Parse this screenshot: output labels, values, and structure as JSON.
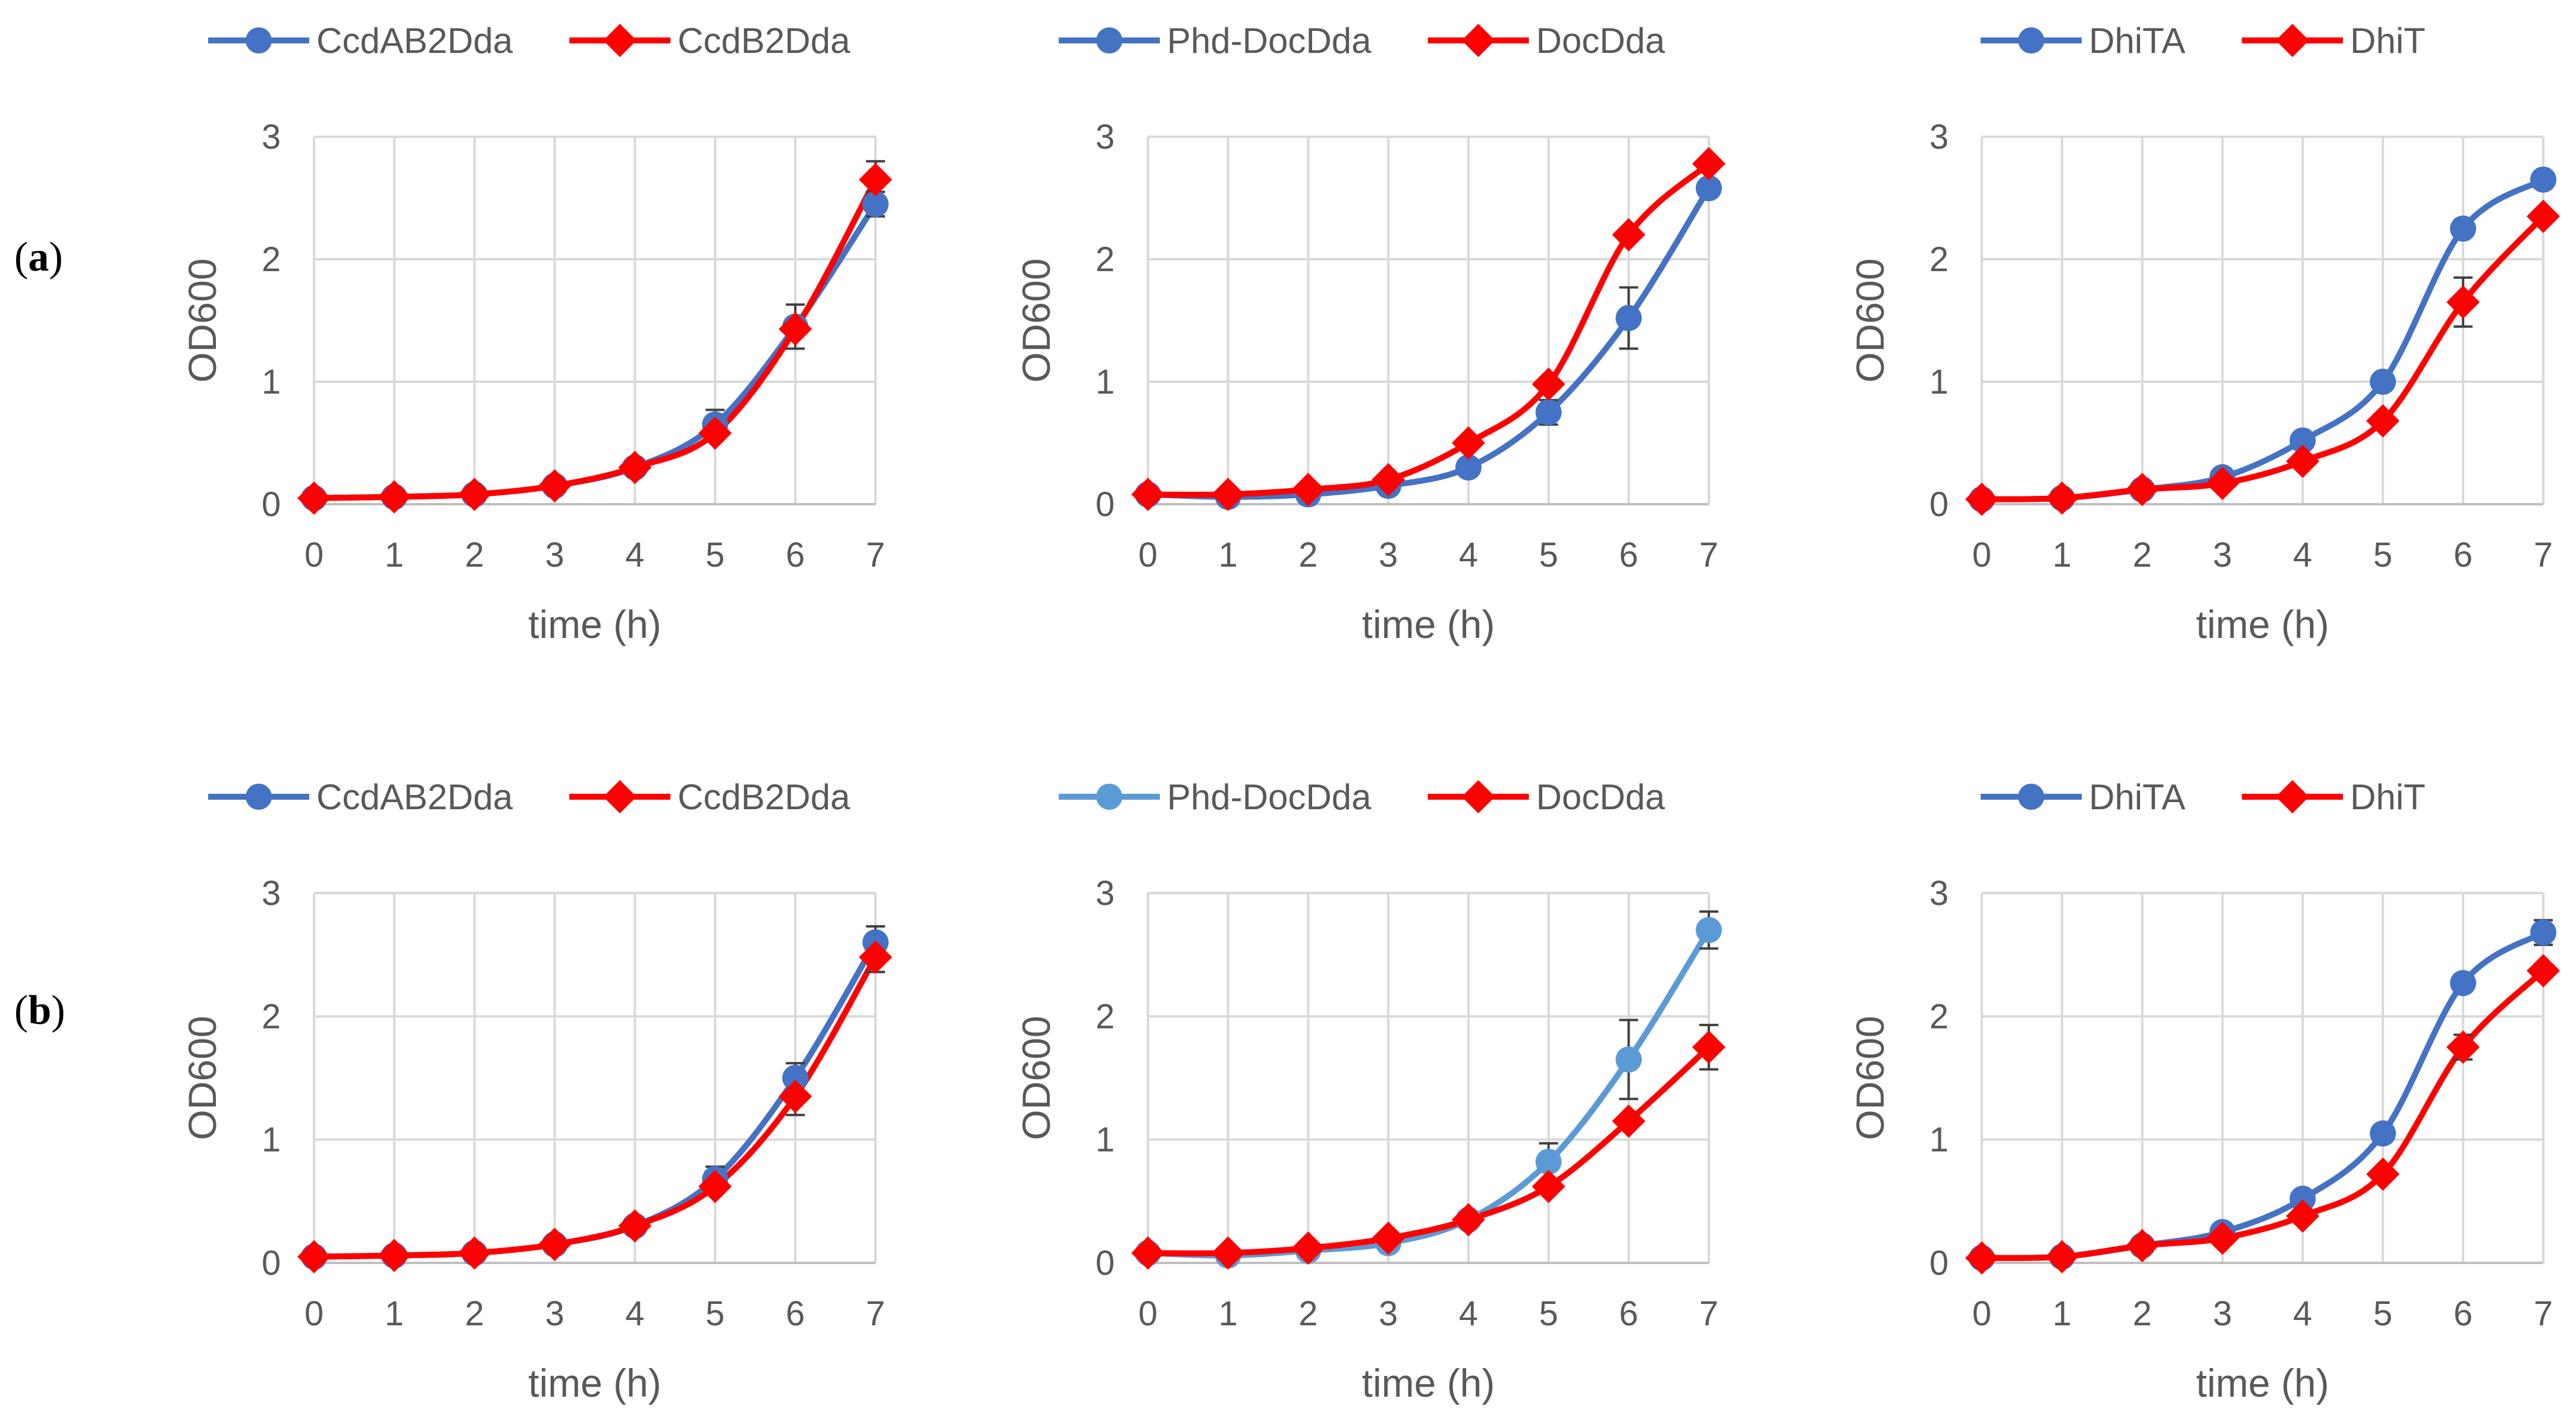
{
  "figure": {
    "row_labels": [
      {
        "prefix": "(",
        "letter": "a",
        "suffix": ")"
      },
      {
        "prefix": "(",
        "letter": "b",
        "suffix": ")"
      }
    ]
  },
  "chart_data": [
    {
      "type": "line",
      "panel": "a1",
      "x": [
        0,
        1,
        2,
        3,
        4,
        5,
        6,
        7
      ],
      "xlabel": "time (h)",
      "ylabel": "OD600",
      "xlim": [
        0,
        7
      ],
      "ylim": [
        0,
        3
      ],
      "xticks": [
        "0",
        "1",
        "2",
        "3",
        "4",
        "5",
        "6",
        "7"
      ],
      "yticks": [
        "0",
        "1",
        "2",
        "3"
      ],
      "grid": true,
      "legend_position": "top",
      "series": [
        {
          "name": "CcdAB2Dda",
          "marker": "circle",
          "color": "#4472C4",
          "values": [
            0.05,
            0.06,
            0.08,
            0.15,
            0.3,
            0.65,
            1.45,
            2.45
          ],
          "errors": [
            0,
            0,
            0,
            0,
            0.03,
            0.12,
            0.18,
            0.1
          ]
        },
        {
          "name": "CcdB2Dda",
          "marker": "diamond",
          "color": "#FF0000",
          "values": [
            0.05,
            0.06,
            0.08,
            0.15,
            0.3,
            0.58,
            1.43,
            2.65
          ],
          "errors": [
            0,
            0,
            0,
            0,
            0,
            0,
            0,
            0.15
          ]
        }
      ]
    },
    {
      "type": "line",
      "panel": "a2",
      "x": [
        0,
        1,
        2,
        3,
        4,
        5,
        6,
        7
      ],
      "xlabel": "time (h)",
      "ylabel": "OD600",
      "xlim": [
        0,
        7
      ],
      "ylim": [
        0,
        3
      ],
      "xticks": [
        "0",
        "1",
        "2",
        "3",
        "4",
        "5",
        "6",
        "7"
      ],
      "yticks": [
        "0",
        "1",
        "2",
        "3"
      ],
      "grid": true,
      "legend_position": "top",
      "series": [
        {
          "name": "Phd-DocDda",
          "marker": "circle",
          "color": "#4472C4",
          "values": [
            0.08,
            0.06,
            0.08,
            0.15,
            0.3,
            0.75,
            1.52,
            2.58
          ],
          "errors": [
            0,
            0,
            0,
            0,
            0,
            0.1,
            0.25,
            0
          ]
        },
        {
          "name": "DocDda",
          "marker": "diamond",
          "color": "#FF0000",
          "values": [
            0.08,
            0.08,
            0.12,
            0.2,
            0.5,
            0.98,
            2.2,
            2.78
          ],
          "errors": [
            0,
            0,
            0,
            0,
            0,
            0,
            0,
            0
          ]
        }
      ]
    },
    {
      "type": "line",
      "panel": "a3",
      "x": [
        0,
        1,
        2,
        3,
        4,
        5,
        6,
        7
      ],
      "xlabel": "time (h)",
      "ylabel": "OD600",
      "xlim": [
        0,
        7
      ],
      "ylim": [
        0,
        3
      ],
      "xticks": [
        "0",
        "1",
        "2",
        "3",
        "4",
        "5",
        "6",
        "7"
      ],
      "yticks": [
        "0",
        "1",
        "2",
        "3"
      ],
      "grid": true,
      "legend_position": "top",
      "series": [
        {
          "name": "DhiTA",
          "marker": "circle",
          "color": "#4472C4",
          "values": [
            0.04,
            0.05,
            0.12,
            0.22,
            0.52,
            1.0,
            2.25,
            2.65
          ],
          "errors": [
            0,
            0,
            0,
            0,
            0,
            0,
            0,
            0
          ]
        },
        {
          "name": "DhiT",
          "marker": "diamond",
          "color": "#FF0000",
          "values": [
            0.04,
            0.05,
            0.12,
            0.17,
            0.35,
            0.68,
            1.65,
            2.35
          ],
          "errors": [
            0,
            0,
            0,
            0,
            0,
            0,
            0.2,
            0
          ]
        }
      ]
    },
    {
      "type": "line",
      "panel": "b1",
      "x": [
        0,
        1,
        2,
        3,
        4,
        5,
        6,
        7
      ],
      "xlabel": "time (h)",
      "ylabel": "OD600",
      "xlim": [
        0,
        7
      ],
      "ylim": [
        0,
        3
      ],
      "xticks": [
        "0",
        "1",
        "2",
        "3",
        "4",
        "5",
        "6",
        "7"
      ],
      "yticks": [
        "0",
        "1",
        "2",
        "3"
      ],
      "grid": true,
      "legend_position": "top",
      "series": [
        {
          "name": "CcdAB2Dda",
          "marker": "circle",
          "color": "#4472C4",
          "values": [
            0.05,
            0.06,
            0.08,
            0.15,
            0.3,
            0.68,
            1.5,
            2.6
          ],
          "errors": [
            0,
            0,
            0,
            0,
            0,
            0.1,
            0.12,
            0.13
          ]
        },
        {
          "name": "CcdB2Dda",
          "marker": "diamond",
          "color": "#FF0000",
          "values": [
            0.05,
            0.06,
            0.08,
            0.15,
            0.3,
            0.62,
            1.35,
            2.48
          ],
          "errors": [
            0,
            0,
            0,
            0,
            0,
            0,
            0.15,
            0.12
          ]
        }
      ]
    },
    {
      "type": "line",
      "panel": "b2",
      "x": [
        0,
        1,
        2,
        3,
        4,
        5,
        6,
        7
      ],
      "xlabel": "time (h)",
      "ylabel": "OD600",
      "xlim": [
        0,
        7
      ],
      "ylim": [
        0,
        3
      ],
      "xticks": [
        "0",
        "1",
        "2",
        "3",
        "4",
        "5",
        "6",
        "7"
      ],
      "yticks": [
        "0",
        "1",
        "2",
        "3"
      ],
      "grid": true,
      "legend_position": "top",
      "series": [
        {
          "name": "Phd-DocDda",
          "marker": "circle",
          "color": "#5B9BD5",
          "values": [
            0.08,
            0.06,
            0.1,
            0.16,
            0.35,
            0.82,
            1.65,
            2.7
          ],
          "errors": [
            0,
            0,
            0,
            0,
            0,
            0.15,
            0.32,
            0.15
          ]
        },
        {
          "name": "DocDda",
          "marker": "diamond",
          "color": "#FF0000",
          "values": [
            0.08,
            0.08,
            0.12,
            0.2,
            0.35,
            0.62,
            1.15,
            1.75
          ],
          "errors": [
            0,
            0,
            0,
            0,
            0,
            0,
            0,
            0.18
          ]
        }
      ]
    },
    {
      "type": "line",
      "panel": "b3",
      "x": [
        0,
        1,
        2,
        3,
        4,
        5,
        6,
        7
      ],
      "xlabel": "time (h)",
      "ylabel": "OD600",
      "xlim": [
        0,
        7
      ],
      "ylim": [
        0,
        3
      ],
      "xticks": [
        "0",
        "1",
        "2",
        "3",
        "4",
        "5",
        "6",
        "7"
      ],
      "yticks": [
        "0",
        "1",
        "2",
        "3"
      ],
      "grid": true,
      "legend_position": "top",
      "series": [
        {
          "name": "DhiTA",
          "marker": "circle",
          "color": "#4472C4",
          "values": [
            0.04,
            0.05,
            0.14,
            0.25,
            0.52,
            1.05,
            2.27,
            2.68
          ],
          "errors": [
            0,
            0,
            0,
            0,
            0,
            0,
            0,
            0.1
          ]
        },
        {
          "name": "DhiT",
          "marker": "diamond",
          "color": "#FF0000",
          "values": [
            0.04,
            0.05,
            0.14,
            0.2,
            0.38,
            0.72,
            1.75,
            2.37
          ],
          "errors": [
            0,
            0,
            0,
            0,
            0,
            0,
            0.1,
            0
          ]
        }
      ]
    }
  ]
}
